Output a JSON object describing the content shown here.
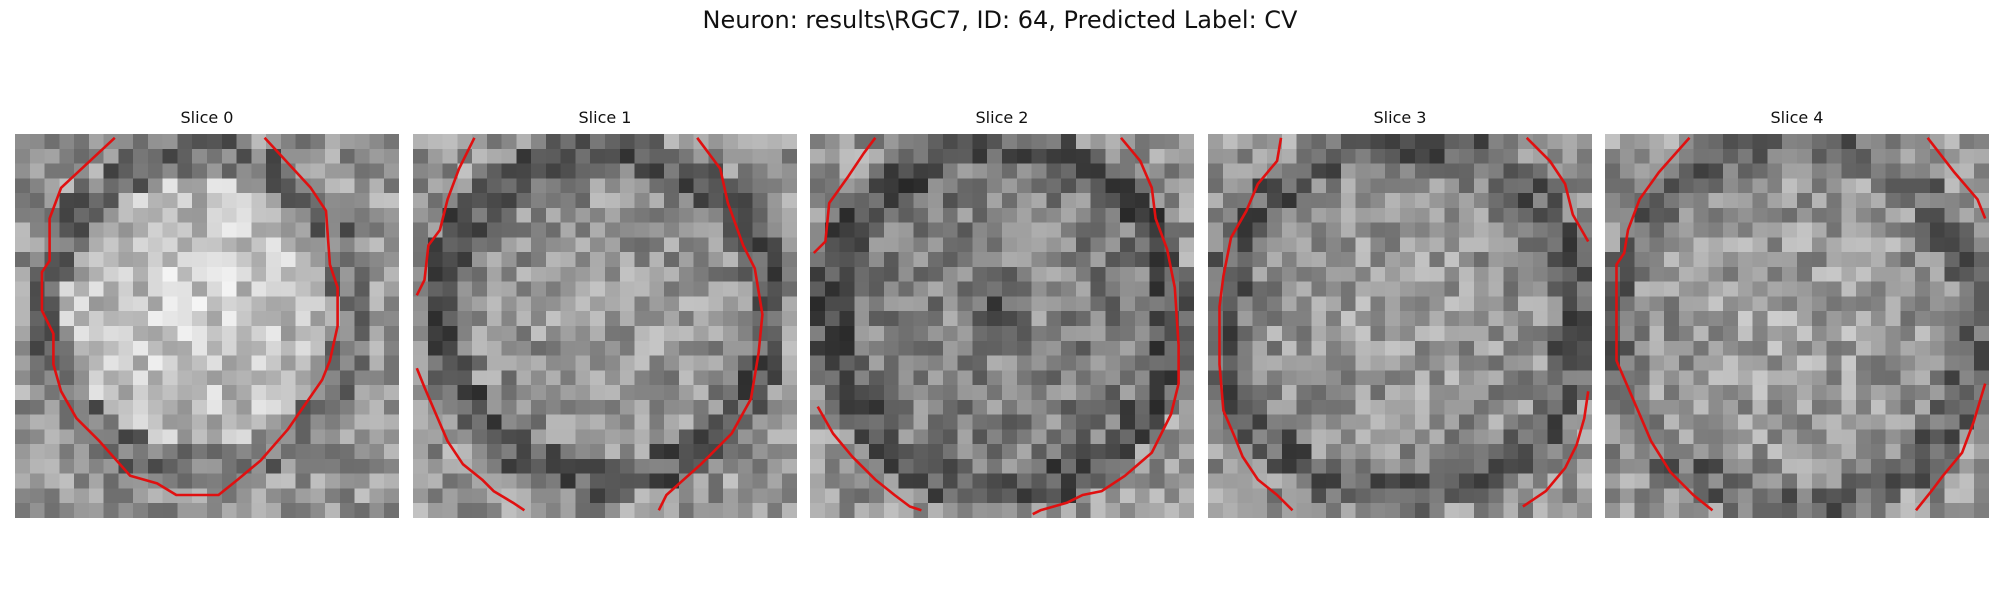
{
  "figure": {
    "suptitle": "Neuron: results\\RGC7, ID: 64, Predicted Label: CV",
    "contour_color": "#e01010",
    "colormap": "gray"
  },
  "slices": [
    {
      "title": "Slice 0"
    },
    {
      "title": "Slice 1"
    },
    {
      "title": "Slice 2"
    },
    {
      "title": "Slice 3"
    },
    {
      "title": "Slice 4"
    }
  ]
}
